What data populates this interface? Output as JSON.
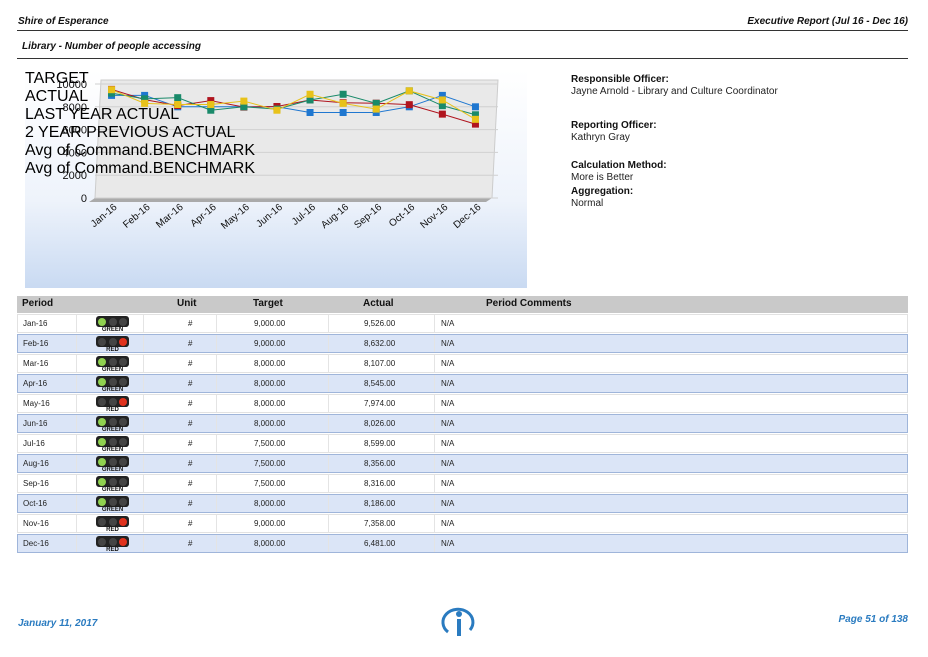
{
  "header": {
    "organisation": "Shire of Esperance",
    "report": "Executive Report (Jul 16 - Dec 16)",
    "section": "Library - Number of people accessing"
  },
  "chart_data": {
    "type": "line",
    "categories": [
      "Jan-16",
      "Feb-16",
      "Mar-16",
      "Apr-16",
      "May-16",
      "Jun-16",
      "Jul-16",
      "Aug-16",
      "Sep-16",
      "Oct-16",
      "Nov-16",
      "Dec-16"
    ],
    "series": [
      {
        "name": "TARGET",
        "color": "#1f77d0",
        "values": [
          9000,
          9000,
          8000,
          8000,
          8000,
          8000,
          7500,
          7500,
          7500,
          8000,
          9000,
          8000
        ]
      },
      {
        "name": "ACTUAL",
        "color": "#b0141e",
        "values": [
          9526,
          8632,
          8107,
          8545,
          7974,
          8026,
          8599,
          8356,
          8316,
          8186,
          7358,
          6481
        ]
      },
      {
        "name": "LAST YEAR ACTUAL",
        "color": "#1a8a6a",
        "values": [
          9200,
          8700,
          8800,
          7700,
          8000,
          7800,
          8600,
          9100,
          8300,
          9400,
          8100,
          7300
        ]
      },
      {
        "name": "2 YEAR PREVIOUS ACTUAL",
        "color": "#e8c21a",
        "values": [
          9500,
          8300,
          8200,
          8200,
          8500,
          7700,
          9100,
          8300,
          7800,
          9400,
          8600,
          6900
        ]
      },
      {
        "name": "Avg of Command.BENCHMARK",
        "color": "#b0141e",
        "values": [
          null,
          null,
          null,
          null,
          null,
          null,
          null,
          null,
          null,
          null,
          null,
          null
        ]
      },
      {
        "name": "Avg of Command.BENCHMARK",
        "color": "#f0d24a",
        "values": [
          null,
          null,
          null,
          null,
          null,
          null,
          null,
          null,
          null,
          null,
          null,
          null
        ]
      }
    ],
    "ylim": [
      0,
      10000
    ],
    "yticks": [
      0,
      2000,
      4000,
      6000,
      8000,
      10000
    ],
    "grid": true
  },
  "info": [
    {
      "label": "Responsible Officer:",
      "value": "Jayne Arnold - Library and Culture Coordinator"
    },
    {
      "label": "Reporting Officer:",
      "value": "Kathryn Gray"
    },
    {
      "label": "Calculation Method:",
      "value": "More is Better"
    },
    {
      "label": "Aggregation:",
      "value": "Normal"
    }
  ],
  "table": {
    "columns": [
      "Period",
      "Unit",
      "Target",
      "Actual",
      "Period Comments"
    ],
    "rows": [
      [
        "Jan-16",
        "GREEN",
        "#",
        "9,000.00",
        "9,526.00",
        "N/A"
      ],
      [
        "Feb-16",
        "RED",
        "#",
        "9,000.00",
        "8,632.00",
        "N/A"
      ],
      [
        "Mar-16",
        "GREEN",
        "#",
        "8,000.00",
        "8,107.00",
        "N/A"
      ],
      [
        "Apr-16",
        "GREEN",
        "#",
        "8,000.00",
        "8,545.00",
        "N/A"
      ],
      [
        "May-16",
        "RED",
        "#",
        "8,000.00",
        "7,974.00",
        "N/A"
      ],
      [
        "Jun-16",
        "GREEN",
        "#",
        "8,000.00",
        "8,026.00",
        "N/A"
      ],
      [
        "Jul-16",
        "GREEN",
        "#",
        "7,500.00",
        "8,599.00",
        "N/A"
      ],
      [
        "Aug-16",
        "GREEN",
        "#",
        "7,500.00",
        "8,356.00",
        "N/A"
      ],
      [
        "Sep-16",
        "GREEN",
        "#",
        "7,500.00",
        "8,316.00",
        "N/A"
      ],
      [
        "Oct-16",
        "GREEN",
        "#",
        "8,000.00",
        "8,186.00",
        "N/A"
      ],
      [
        "Nov-16",
        "RED",
        "#",
        "9,000.00",
        "7,358.00",
        "N/A"
      ],
      [
        "Dec-16",
        "RED",
        "#",
        "8,000.00",
        "6,481.00",
        "N/A"
      ]
    ]
  },
  "footer": {
    "date": "January 11, 2017",
    "page": "Page 51 of 138"
  }
}
